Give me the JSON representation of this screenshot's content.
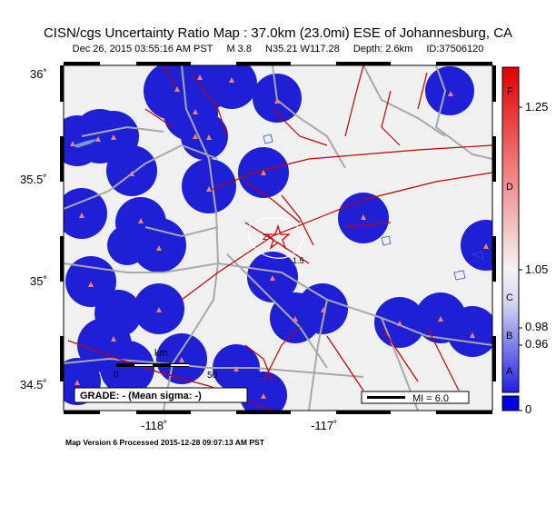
{
  "title": "CISN/cgs Uncertainty Ratio Map : 37.0km (23.0mi) ESE of Johannesburg, CA",
  "event": {
    "datetime": "Dec 26, 2015 03:55:16 AM PST",
    "magnitude": "M 3.8",
    "location": "N35.21 W117.28",
    "depth": "Depth: 2.6km",
    "id": "ID:37506120"
  },
  "footer": "Map Version 6 Processed 2015-12-28 09:07:13 AM PST",
  "axes": {
    "lat_labels": [
      "36˚",
      "35.5˚",
      "35˚",
      "34.5˚"
    ],
    "lon_labels": [
      "-118˚",
      "-117˚"
    ]
  },
  "grade_box": "GRADE: - (Mean sigma: -)",
  "mi_legend": "MI = 6.0",
  "scale_bar": {
    "unit": "km",
    "start": "0",
    "end": "50"
  },
  "contours": [
    "2",
    "1.5"
  ],
  "colorbar": {
    "letters": [
      "F",
      "D",
      "C",
      "B",
      "A"
    ],
    "ticks": [
      "1.25",
      "1.05",
      "0.98",
      "0.96",
      "0"
    ],
    "colors": {
      "high": "#e00000",
      "mid": "#f2f2f2",
      "low": "#0000e0"
    }
  },
  "colors": {
    "coverage": "#1f1fd6",
    "faults": "#c00000",
    "roads": "#a8a8a8",
    "background": "#f0f0f0",
    "stations": "#f0826f",
    "epicenter": "#e00000"
  }
}
